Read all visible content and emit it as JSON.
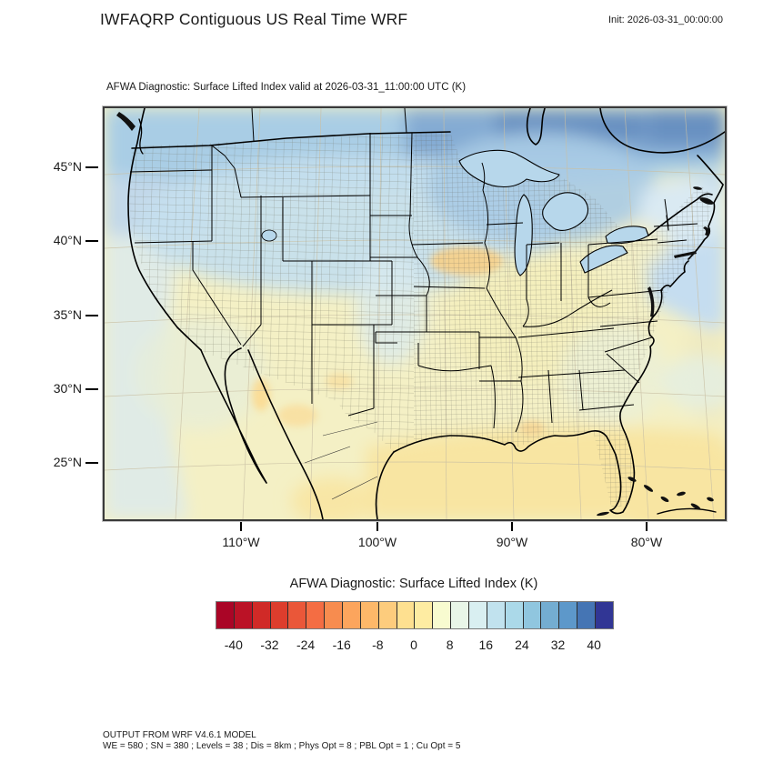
{
  "header": {
    "title": "IWFAQRP Contiguous US Real Time WRF",
    "init_label": "Init: 2026-03-31_00:00:00"
  },
  "map": {
    "subtitle": "AFWA Diagnostic: Surface Lifted Index valid at 2026-03-31_11:00:00 UTC   (K)",
    "lat_ticks": [
      "45°N",
      "40°N",
      "35°N",
      "30°N",
      "25°N"
    ],
    "lon_ticks": [
      "110°W",
      "100°W",
      "90°W",
      "80°W"
    ]
  },
  "colorbar": {
    "title": "AFWA Diagnostic: Surface Lifted Index  (K)",
    "tick_labels": [
      "-40",
      "-32",
      "-24",
      "-16",
      "-8",
      "0",
      "8",
      "16",
      "24",
      "32",
      "40"
    ],
    "tick_values": [
      -40,
      -32,
      -24,
      -16,
      -8,
      0,
      8,
      16,
      24,
      32,
      40
    ],
    "units": "K",
    "cell_colors": [
      "#aa0526",
      "#bb1226",
      "#d02a27",
      "#dd3d2d",
      "#ea5739",
      "#f46d43",
      "#f78c4f",
      "#fca55d",
      "#fdb869",
      "#fdcc7d",
      "#fee090",
      "#feeca2",
      "#f8fbd0",
      "#e9f6e8",
      "#d9eff1",
      "#c1e2ee",
      "#abd9e9",
      "#90c6df",
      "#74add1",
      "#5d98ca",
      "#4575b4",
      "#313695"
    ]
  },
  "field_colors": {
    "land_base_yellow": "#f4f0c5",
    "pacific_green": "#e0ebe6",
    "pacific_north_blue": "#c2d8e9",
    "canada_band_blue": "#a9cde5",
    "canada_deep_blue": "#84abd3",
    "canada_darkest_blue": "#6890c1",
    "plains_light_blue": "#c6dfee",
    "atlantic_ne_blue": "#c5ddf0",
    "atlantic_yellow": "#efeac0",
    "gulf_warm_yellow": "#f8e5a2",
    "midwest_orange": "#f5d18c"
  },
  "footer": {
    "line1": "OUTPUT FROM WRF V4.6.1 MODEL",
    "line2": "WE = 580 ; SN = 380 ; Levels = 38 ; Dis = 8km ; Phys Opt = 8 ; PBL Opt = 1 ; Cu Opt = 5"
  }
}
